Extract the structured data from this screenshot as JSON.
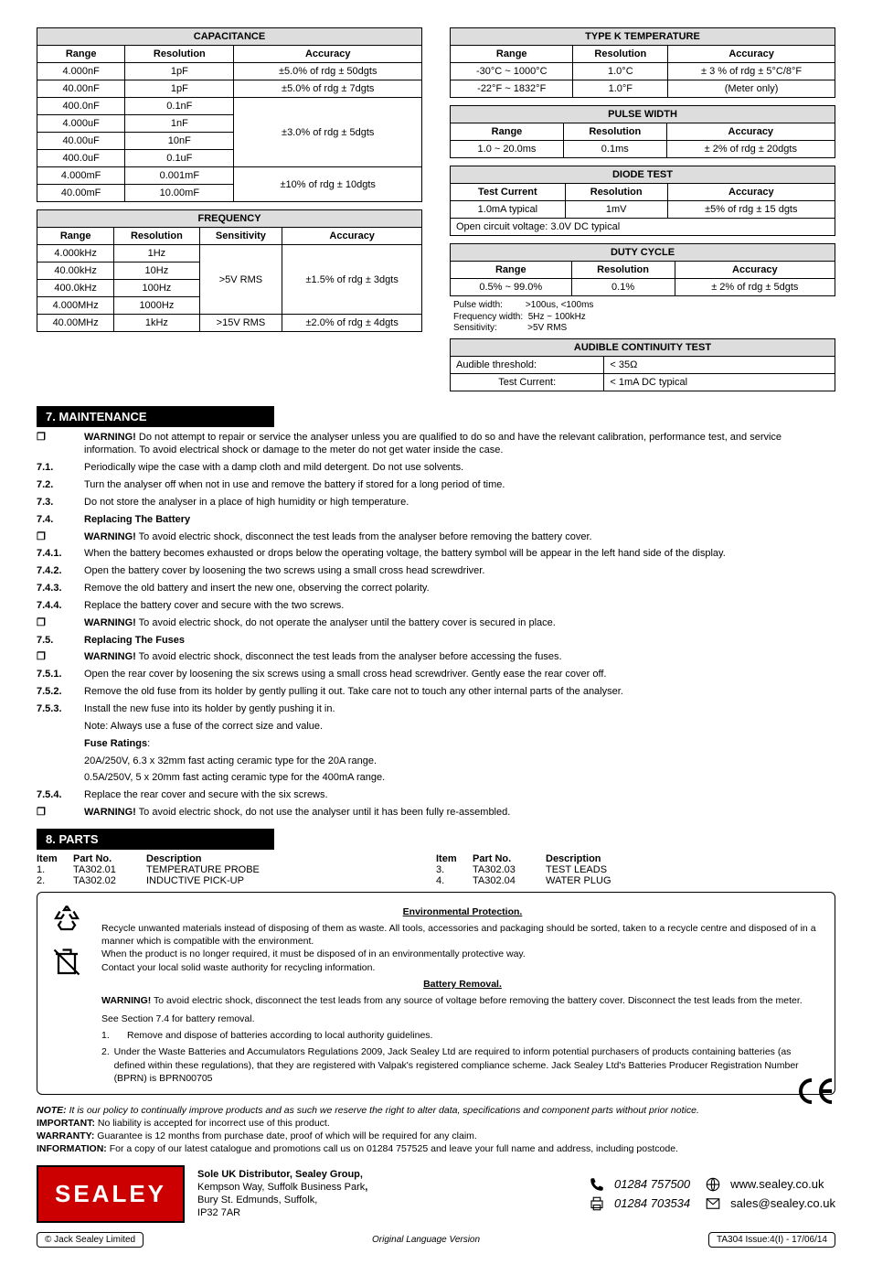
{
  "capacitance": {
    "title": "CAPACITANCE",
    "headers": [
      "Range",
      "Resolution",
      "Accuracy"
    ],
    "rows": [
      {
        "range": "4.000nF",
        "res": "1pF",
        "acc": "±5.0% of rdg ± 50dgts"
      },
      {
        "range": "40.00nF",
        "res": "1pF",
        "acc": "±5.0% of rdg ± 7dgts"
      },
      {
        "range": "400.0nF",
        "res": "0.1nF",
        "acc": "±3.0% of rdg ± 5dgts",
        "span": 4
      },
      {
        "range": "4.000uF",
        "res": "1nF"
      },
      {
        "range": "40.00uF",
        "res": "10nF"
      },
      {
        "range": "400.0uF",
        "res": "0.1uF"
      },
      {
        "range": "4.000mF",
        "res": "0.001mF",
        "acc": "±10% of rdg ± 10dgts",
        "span": 2
      },
      {
        "range": "40.00mF",
        "res": "10.00mF"
      }
    ]
  },
  "frequency": {
    "title": "FREQUENCY",
    "headers": [
      "Range",
      "Resolution",
      "Sensitivity",
      "Accuracy"
    ],
    "rows": [
      {
        "range": "4.000kHz",
        "res": "1Hz",
        "sens": ">5V RMS",
        "sens_span": 4,
        "acc": "±1.5% of rdg ± 3dgts",
        "acc_span": 4
      },
      {
        "range": "40.00kHz",
        "res": "10Hz"
      },
      {
        "range": "400.0kHz",
        "res": "100Hz"
      },
      {
        "range": "4.000MHz",
        "res": "1000Hz"
      },
      {
        "range": "40.00MHz",
        "res": "1kHz",
        "sens": ">15V RMS",
        "acc": "±2.0% of rdg ± 4dgts"
      }
    ]
  },
  "typek": {
    "title": "TYPE K TEMPERATURE",
    "headers": [
      "Range",
      "Resolution",
      "Accuracy"
    ],
    "rows": [
      {
        "range": "-30°C ~ 1000°C",
        "res": "1.0°C",
        "acc": "± 3 % of rdg ± 5°C/8°F"
      },
      {
        "range": "-22°F ~ 1832°F",
        "res": "1.0°F",
        "acc": "(Meter only)"
      }
    ]
  },
  "pulse": {
    "title": "PULSE WIDTH",
    "headers": [
      "Range",
      "Resolution",
      "Accuracy"
    ],
    "rows": [
      {
        "range": "1.0 ~ 20.0ms",
        "res": "0.1ms",
        "acc": "± 2% of rdg ± 20dgts"
      }
    ]
  },
  "diode": {
    "title": "DIODE TEST",
    "headers": [
      "Test Current",
      "Resolution",
      "Accuracy"
    ],
    "rows": [
      {
        "range": "1.0mA typical",
        "res": "1mV",
        "acc": "±5% of rdg ± 15 dgts"
      }
    ],
    "note": "Open circuit voltage:    3.0V DC typical"
  },
  "duty": {
    "title": "DUTY CYCLE",
    "headers": [
      "Range",
      "Resolution",
      "Accuracy"
    ],
    "rows": [
      {
        "range": "0.5% ~ 99.0%",
        "res": "0.1%",
        "acc": "± 2% of rdg ± 5dgts"
      }
    ],
    "notes": "Pulse width:         >100us, <100ms\nFrequency width:  5Hz ~ 100kHz\nSensitivity:            >5V RMS"
  },
  "continuity": {
    "title": "AUDIBLE CONTINUITY TEST",
    "rows": [
      {
        "l": "Audible threshold:",
        "r": "< 35Ω"
      },
      {
        "l": "Test Current:",
        "r": "< 1mA DC typical"
      }
    ]
  },
  "sect7": {
    "bar": "7.   MAINTENANCE",
    "lines": [
      {
        "n": "❐",
        "t": "<b>WARNING!</b> Do not attempt to repair or service the analyser unless you are qualified to do so and have the relevant calibration, performance test, and service information. To avoid electrical shock or damage to the meter do not get water inside the case."
      },
      {
        "n": "7.1.",
        "b": true,
        "t": "Periodically wipe the case with a damp cloth and mild detergent. Do not use solvents."
      },
      {
        "n": "7.2.",
        "b": true,
        "t": "Turn the analyser off when not in use and remove the battery if stored for a long period of time."
      },
      {
        "n": "7.3.",
        "b": true,
        "t": "Do not store the analyser in a place of high humidity or high temperature."
      },
      {
        "n": "7.4.",
        "b": true,
        "t": "<b>Replacing The Battery</b>"
      },
      {
        "n": "❐",
        "t": "<b>WARNING!</b> To avoid electric shock, disconnect the test leads from the analyser before removing the battery cover."
      },
      {
        "n": "7.4.1.",
        "t": "When the battery becomes exhausted or drops below the operating voltage,  the battery symbol will be appear in the left hand side of the display."
      },
      {
        "n": "7.4.2.",
        "t": "Open the battery cover by loosening the two screws using a small cross head screwdriver."
      },
      {
        "n": "7.4.3.",
        "t": "Remove the old battery and insert the new one, observing the correct polarity."
      },
      {
        "n": "7.4.4.",
        "t": "Replace the battery cover and secure with the two screws."
      },
      {
        "n": "❐",
        "t": "<b>WARNING!</b> To avoid electric shock, do not operate the analyser until the battery cover is secured in place."
      },
      {
        "n": "7.5.",
        "b": true,
        "t": "<b>Replacing The Fuses</b>"
      },
      {
        "n": "❐",
        "t": "<b>WARNING!</b> To avoid electric shock, disconnect the test leads from the analyser before accessing the fuses."
      },
      {
        "n": "7.5.1.",
        "t": "Open the rear cover by loosening the six screws using a small cross head screwdriver. Gently ease the rear cover off."
      },
      {
        "n": "7.5.2.",
        "t": "Remove the old fuse from its holder by gently pulling it out. Take care not to touch any other internal parts of the analyser."
      },
      {
        "n": "7.5.3.",
        "t": "Install the new fuse into its holder by gently pushing it in."
      },
      {
        "n": "",
        "t": "Note: Always use a fuse of the correct size and value."
      },
      {
        "n": "",
        "t": "<b>Fuse Ratings</b>:"
      },
      {
        "n": "",
        "t": "20A/250V, 6.3 x 32mm fast acting ceramic type for the 20A range."
      },
      {
        "n": "",
        "t": "0.5A/250V, 5 x 20mm fast acting ceramic type for the 400mA range."
      },
      {
        "n": "7.5.4.",
        "t": "Replace the rear cover and secure with the six screws."
      },
      {
        "n": "❐",
        "t": "<b>WARNING!</b> To avoid electric shock, do not use the analyser until it has been fully re-assembled."
      }
    ]
  },
  "sect8": {
    "bar": "8.   PARTS",
    "header": {
      "a": "Item",
      "b": "Part No.",
      "c": "Description"
    },
    "left": [
      {
        "a": "1.",
        "b": "TA302.01",
        "c": "TEMPERATURE PROBE"
      },
      {
        "a": "2.",
        "b": "TA302.02",
        "c": "INDUCTIVE PICK-UP"
      }
    ],
    "right": [
      {
        "a": "3.",
        "b": "TA302.03",
        "c": "TEST LEADS"
      },
      {
        "a": "4.",
        "b": "TA302.04",
        "c": "WATER PLUG"
      }
    ]
  },
  "env": {
    "h1": "Environmental Protection.",
    "p1": "Recycle unwanted materials instead of disposing of them as waste. All tools, accessories and packaging should be sorted, taken to a recycle centre and disposed of in a manner which is compatible with the environment.",
    "p2": "When the product is no longer required, it must be disposed of in an environmentally protective way.",
    "p3": "Contact your local solid waste authority for recycling information.",
    "h2": "Battery Removal.",
    "p4": "<b>WARNING!</b>  To avoid electric shock, disconnect the test leads from any source of voltage before removing the battery cover. Disconnect the test leads from the meter.",
    "p5": "See Section 7.4 for battery removal.",
    "ol": [
      "Remove and dispose of batteries according to local authority guidelines.",
      "Under the Waste Batteries and Accumulators Regulations 2009, Jack Sealey Ltd are required to inform potential purchasers of products containing batteries (as defined within these regulations), that they are registered with Valpak's registered compliance scheme. Jack Sealey Ltd's Batteries Producer Registration Number (BPRN) is BPRN00705"
    ]
  },
  "notes": {
    "n1": "<b><i>NOTE:</i></b> <i>It is our policy to continually improve products and as such we reserve the right to alter data, specifications and component parts without prior notice.</i>",
    "n2": "<b>IMPORTANT:</b> No liability is accepted for incorrect use of this product.",
    "n3": "<b>WARRANTY:</b> Guarantee is 12 months from purchase date, proof of which will be required for any claim.",
    "n4": "<b>INFORMATION:</b> For a copy of our latest catalogue and promotions call us on 01284 757525 and leave your full name and address, including postcode."
  },
  "contact": {
    "logo": "SEALEY",
    "addr": "<b>Sole UK Distributor, Sealey Group,</b><br>Kempson Way, Suffolk Business Park<b>,</b><br>Bury St. Edmunds, Suffolk,<br>IP32 7AR",
    "tel": "01284  757500",
    "fax": "01284   703534",
    "web": "www.sealey.co.uk",
    "email": "sales@sealey.co.uk"
  },
  "footer": {
    "left": "© Jack Sealey Limited",
    "mid": "Original Language Version",
    "right": "TA304  Issue:4(I) - 17/06/14"
  }
}
